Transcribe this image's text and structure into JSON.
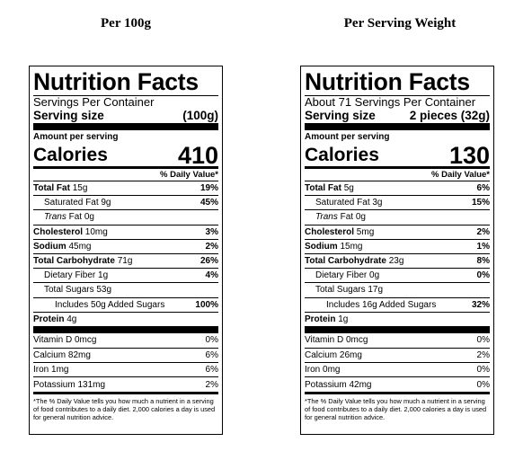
{
  "headings": {
    "left": "Per 100g",
    "right": "Per Serving Weight"
  },
  "labels": [
    {
      "title": "Nutrition Facts",
      "servings": "Servings Per Container",
      "serving_size_label": "Serving size",
      "serving_size_value": "(100g)",
      "amount_per_serving": "Amount per serving",
      "calories_label": "Calories",
      "calories_value": "410",
      "daily_value_header": "% Daily Value*",
      "total_fat": {
        "label": "Total Fat",
        "amount": "15g",
        "dv": "19%"
      },
      "saturated_fat": {
        "label": "Saturated Fat 9g",
        "dv": "45%"
      },
      "trans_fat": {
        "label": "Trans",
        "amount": "Fat 0g"
      },
      "cholesterol": {
        "label": "Cholesterol",
        "amount": "10mg",
        "dv": "3%"
      },
      "sodium": {
        "label": "Sodium",
        "amount": "45mg",
        "dv": "2%"
      },
      "total_carb": {
        "label": "Total Carbohydrate",
        "amount": "71g",
        "dv": "26%"
      },
      "dietary_fiber": {
        "label": "Dietary Fiber 1g",
        "dv": "4%"
      },
      "total_sugars": {
        "label": "Total Sugars 53g"
      },
      "added_sugars": {
        "label": "Includes 50g Added Sugars",
        "dv": "100%"
      },
      "protein": {
        "label": "Protein",
        "amount": "4g"
      },
      "vitamin_d": {
        "label": "Vitamin D 0mcg",
        "dv": "0%"
      },
      "calcium": {
        "label": "Calcium 82mg",
        "dv": "6%"
      },
      "iron": {
        "label": "Iron 1mg",
        "dv": "6%"
      },
      "potassium": {
        "label": "Potassium 131mg",
        "dv": "2%"
      },
      "footnote": "*The % Daily Value tells you how much a nutrient in a serving of food contributes to a daily diet. 2,000 calories a day is used for general nutrition advice."
    },
    {
      "title": "Nutrition Facts",
      "servings": "About 71 Servings Per Container",
      "serving_size_label": "Serving size",
      "serving_size_value": "2 pieces (32g)",
      "amount_per_serving": "Amount per serving",
      "calories_label": "Calories",
      "calories_value": "130",
      "daily_value_header": "% Daily Value*",
      "total_fat": {
        "label": "Total Fat",
        "amount": "5g",
        "dv": "6%"
      },
      "saturated_fat": {
        "label": "Saturated Fat 3g",
        "dv": "15%"
      },
      "trans_fat": {
        "label": "Trans",
        "amount": "Fat 0g"
      },
      "cholesterol": {
        "label": "Cholesterol",
        "amount": "5mg",
        "dv": "2%"
      },
      "sodium": {
        "label": "Sodium",
        "amount": "15mg",
        "dv": "1%"
      },
      "total_carb": {
        "label": "Total Carbohydrate",
        "amount": "23g",
        "dv": "8%"
      },
      "dietary_fiber": {
        "label": "Dietary Fiber 0g",
        "dv": "0%"
      },
      "total_sugars": {
        "label": "Total Sugars 17g"
      },
      "added_sugars": {
        "label": "Includes 16g Added Sugars",
        "dv": "32%"
      },
      "protein": {
        "label": "Protein",
        "amount": "1g"
      },
      "vitamin_d": {
        "label": "Vitamin D 0mcg",
        "dv": "0%"
      },
      "calcium": {
        "label": "Calcium 26mg",
        "dv": "2%"
      },
      "iron": {
        "label": "Iron 0mg",
        "dv": "0%"
      },
      "potassium": {
        "label": "Potassium 42mg",
        "dv": "0%"
      },
      "footnote": "*The % Daily Value tells you how much a nutrient in a serving of food contributes to a daily diet. 2,000 calories a day is used for general nutrition advice."
    }
  ]
}
